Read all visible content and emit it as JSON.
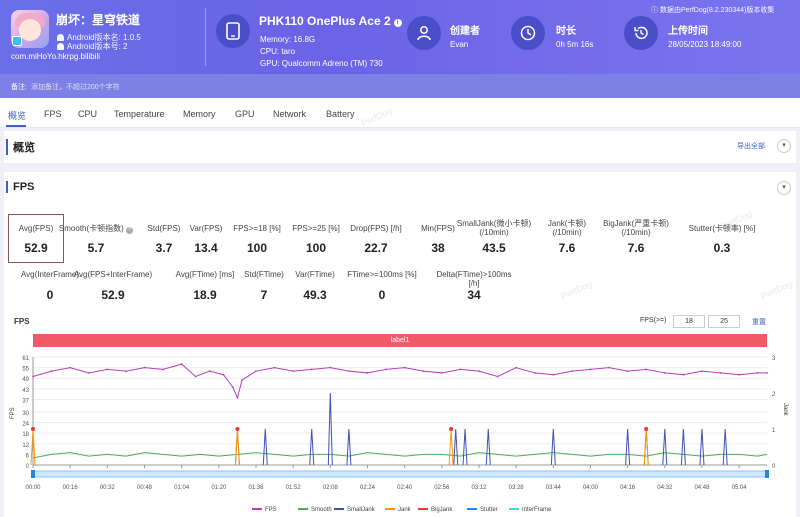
{
  "app": {
    "name": "崩坏：星穹铁道",
    "android_version": "Android版本名: 1.0.5",
    "android_code": "Android版本号: 2",
    "package": "com.miHoYo.hkrpg.bilibili"
  },
  "device": {
    "name": "PHK110 OnePlus Ace 2",
    "memory": "Memory: 16.8G",
    "cpu": "CPU: taro",
    "gpu": "GPU: Qualcomm Adreno (TM) 730"
  },
  "creator": {
    "title": "创建者",
    "value": "Evan"
  },
  "duration": {
    "title": "时长",
    "value": "0h 5m 16s"
  },
  "upload": {
    "title": "上传时间",
    "value": "28/05/2023 18:49:00"
  },
  "source": "数据由PerfDog(8.2.230344)版本收集",
  "note": {
    "label": "备注:",
    "placeholder": "添加备注，不超过200个字符"
  },
  "tabs": [
    "概览",
    "FPS",
    "CPU",
    "Temperature",
    "Memory",
    "GPU",
    "Network",
    "Battery"
  ],
  "watermark": "PerfDog",
  "overview": {
    "title": "概览",
    "export": "导出全部"
  },
  "fps_section": {
    "title": "FPS"
  },
  "metrics_row1": [
    {
      "label": "Avg(FPS)",
      "value": "52.9"
    },
    {
      "label": "Smooth(卡顿指数)",
      "value": "5.7"
    },
    {
      "label": "Std(FPS)",
      "value": "3.7"
    },
    {
      "label": "Var(FPS)",
      "value": "13.4"
    },
    {
      "label": "FPS>=18 [%]",
      "value": "100"
    },
    {
      "label": "FPS>=25 [%]",
      "value": "100"
    },
    {
      "label": "Drop(FPS) [/h]",
      "value": "22.7"
    },
    {
      "label": "Min(FPS)",
      "value": "38"
    },
    {
      "label": "SmallJank(微小卡顿)\n(/10min)",
      "value": "43.5"
    },
    {
      "label": "Jank(卡顿)\n(/10min)",
      "value": "7.6"
    },
    {
      "label": "BigJank(严重卡顿)\n(/10min)",
      "value": "7.6"
    },
    {
      "label": "Stutter(卡顿率) [%]",
      "value": "0.3"
    }
  ],
  "metrics_row2": [
    {
      "label": "Avg(InterFrame)",
      "value": "0"
    },
    {
      "label": "Avg(FPS+InterFrame)",
      "value": "52.9"
    },
    {
      "label": "Avg(FTime) [ms]",
      "value": "18.9"
    },
    {
      "label": "Std(FTime)",
      "value": "7"
    },
    {
      "label": "Var(FTime)",
      "value": "49.3"
    },
    {
      "label": "FTime>=100ms [%]",
      "value": "0"
    },
    {
      "label": "Delta(FTime)>100ms [/h]",
      "value": "34"
    }
  ],
  "chart": {
    "title": "FPS",
    "fps_threshold_label": "FPS(>=)",
    "threshold_1": "18",
    "threshold_2": "25",
    "reset": "重置",
    "band_label": "label1",
    "y_left_label": "FPS",
    "y_right_label": "Jank",
    "colors": {
      "fps": "#b43fb8",
      "smooth": "#4caf50",
      "smalljank": "#3f51b5",
      "jank": "#ff9800",
      "bigjank": "#e53935",
      "stutter": "#1e88e5",
      "interframe": "#4dd0e1"
    }
  },
  "chart_data": {
    "type": "line",
    "title": "FPS",
    "ylabel": "FPS",
    "y2label": "Jank",
    "y_ticks": [
      0,
      6,
      12,
      18,
      24,
      30,
      37,
      43,
      49,
      55,
      61
    ],
    "y2_ticks": [
      0,
      1,
      2,
      3
    ],
    "ylim": [
      0,
      61
    ],
    "y2lim": [
      0,
      3
    ],
    "x_ticks": [
      "00:00",
      "00:16",
      "00:32",
      "00:48",
      "01:04",
      "01:20",
      "01:36",
      "01:52",
      "02:08",
      "02:24",
      "02:40",
      "02:56",
      "03:12",
      "03:28",
      "03:44",
      "04:00",
      "04:16",
      "04:32",
      "04:48",
      "05:04"
    ],
    "xlim_seconds": [
      0,
      316
    ],
    "series": [
      {
        "name": "FPS",
        "x": [
          0,
          8,
          16,
          24,
          32,
          40,
          48,
          56,
          64,
          70,
          76,
          82,
          86,
          88,
          90,
          96,
          104,
          112,
          120,
          128,
          136,
          144,
          152,
          160,
          168,
          176,
          184,
          192,
          200,
          208,
          216,
          224,
          232,
          240,
          248,
          256,
          264,
          272,
          280,
          288,
          296,
          304,
          312,
          316
        ],
        "values": [
          50,
          53,
          55,
          52,
          54,
          53,
          55,
          54,
          57,
          50,
          53,
          51,
          44,
          38,
          48,
          53,
          55,
          53,
          54,
          55,
          53,
          52,
          54,
          55,
          53,
          52,
          54,
          53,
          50,
          55,
          52,
          51,
          53,
          54,
          55,
          53,
          54,
          52,
          51,
          53,
          52,
          51,
          52,
          52
        ]
      },
      {
        "name": "Smooth",
        "x": [
          0,
          8,
          16,
          24,
          32,
          40,
          48,
          56,
          64,
          72,
          80,
          88,
          96,
          104,
          112,
          120,
          128,
          136,
          144,
          152,
          160,
          168,
          176,
          184,
          192,
          200,
          208,
          216,
          224,
          232,
          240,
          248,
          256,
          264,
          272,
          280,
          288,
          296,
          304,
          312,
          316
        ],
        "values": [
          4,
          6,
          7,
          5,
          6,
          5,
          7,
          6,
          5,
          6,
          5,
          6,
          7,
          6,
          5,
          6,
          6,
          5,
          7,
          6,
          5,
          6,
          6,
          5,
          7,
          6,
          5,
          6,
          7,
          6,
          5,
          6,
          6,
          5,
          7,
          6,
          5,
          6,
          6,
          5,
          6
        ]
      },
      {
        "name": "SmallJank",
        "x": [
          86,
          88,
          90,
          100,
          112,
          120,
          126,
          128,
          130,
          136,
          180,
          182,
          184,
          186,
          190,
          196,
          220,
          224,
          252,
          256,
          260,
          264,
          268,
          272,
          276,
          280,
          284,
          288,
          292,
          298
        ],
        "values": [
          0,
          1,
          0,
          1,
          0,
          1,
          0,
          2,
          0,
          1,
          0,
          1,
          0,
          1,
          0,
          1,
          0,
          1,
          0,
          1,
          0,
          1,
          0,
          1,
          0,
          1,
          0,
          1,
          0,
          1
        ]
      },
      {
        "name": "Jank",
        "x": [
          0,
          88,
          180,
          264
        ],
        "values": [
          1,
          1,
          1,
          1
        ]
      },
      {
        "name": "BigJank",
        "x": [
          0,
          88,
          180,
          264
        ],
        "values": [
          1,
          1,
          1,
          1
        ]
      },
      {
        "name": "Stutter",
        "x": [],
        "values": []
      },
      {
        "name": "InterFrame",
        "x": [],
        "values": []
      }
    ],
    "legend": [
      "FPS",
      "Smooth",
      "SmallJank",
      "Jank",
      "BigJank",
      "Stutter",
      "InterFrame"
    ],
    "legend_position": "bottom",
    "grid": true
  }
}
